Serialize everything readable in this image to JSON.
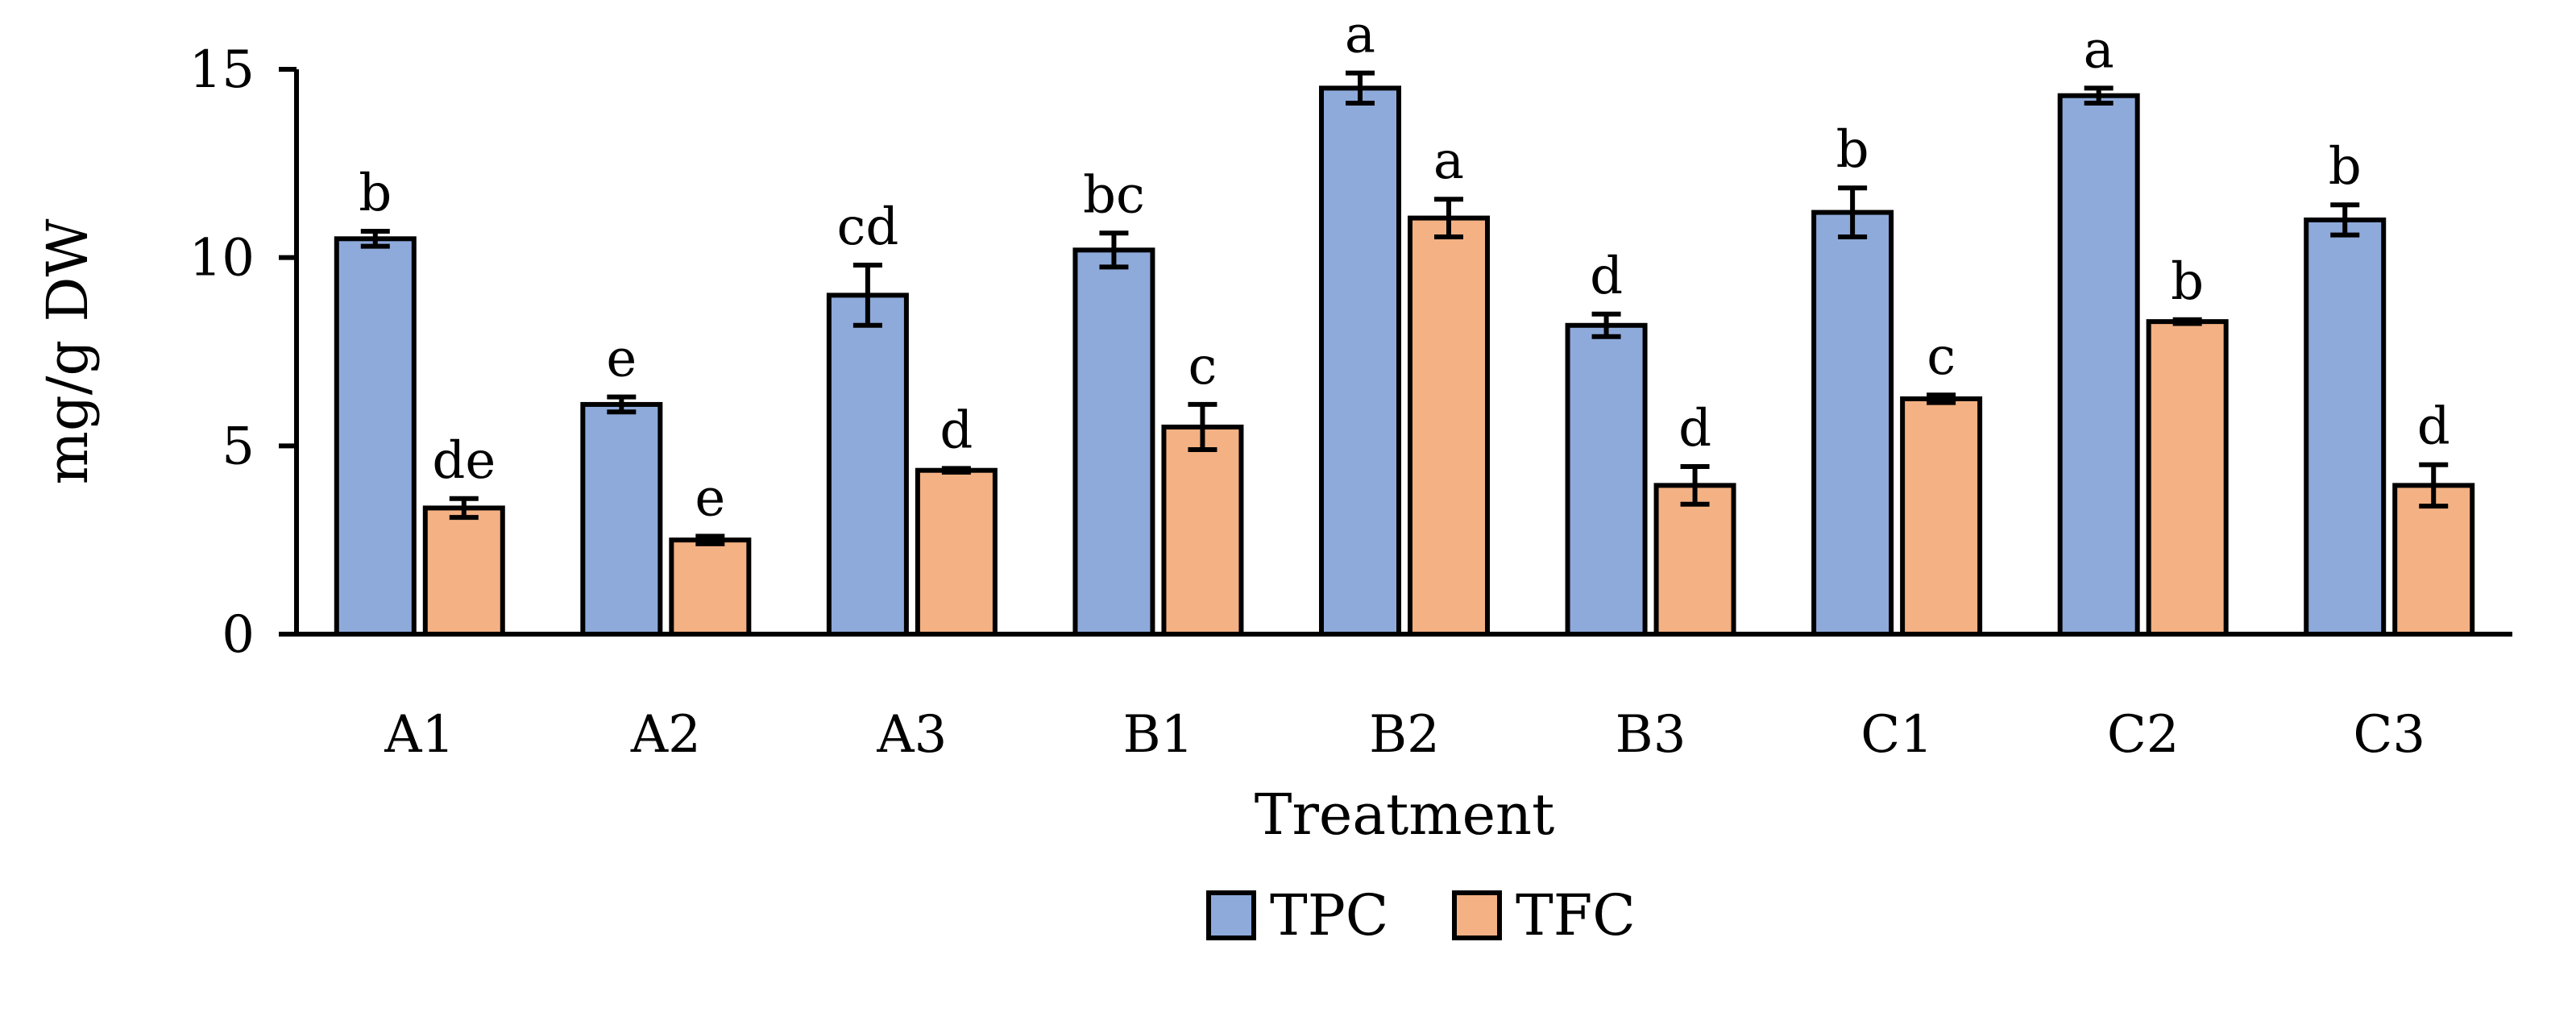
{
  "chart_data": {
    "type": "bar",
    "title": "",
    "xlabel": "Treatment",
    "ylabel": "mg/g DW",
    "ylim": [
      0,
      15
    ],
    "yticks": [
      0,
      5,
      10,
      15
    ],
    "grid": false,
    "legend_position": "bottom",
    "categories": [
      "A1",
      "A2",
      "A3",
      "B1",
      "B2",
      "B3",
      "C1",
      "C2",
      "C3"
    ],
    "series": [
      {
        "name": "TPC",
        "color": "#8eaadb",
        "values": [
          10.5,
          6.1,
          9.0,
          10.2,
          14.5,
          8.2,
          11.2,
          14.3,
          11.0
        ],
        "errors": [
          0.2,
          0.2,
          0.8,
          0.45,
          0.4,
          0.3,
          0.65,
          0.2,
          0.4
        ],
        "significance": [
          "b",
          "e",
          "cd",
          "bc",
          "a",
          "d",
          "b",
          "a",
          "b"
        ]
      },
      {
        "name": "TFC",
        "color": "#f4b183",
        "values": [
          3.35,
          2.5,
          4.35,
          5.5,
          11.05,
          3.95,
          6.25,
          8.3,
          3.95
        ],
        "errors": [
          0.25,
          0.1,
          0.05,
          0.6,
          0.5,
          0.5,
          0.1,
          0.05,
          0.55
        ],
        "significance": [
          "de",
          "e",
          "d",
          "c",
          "a",
          "d",
          "c",
          "b",
          "d"
        ]
      }
    ]
  }
}
